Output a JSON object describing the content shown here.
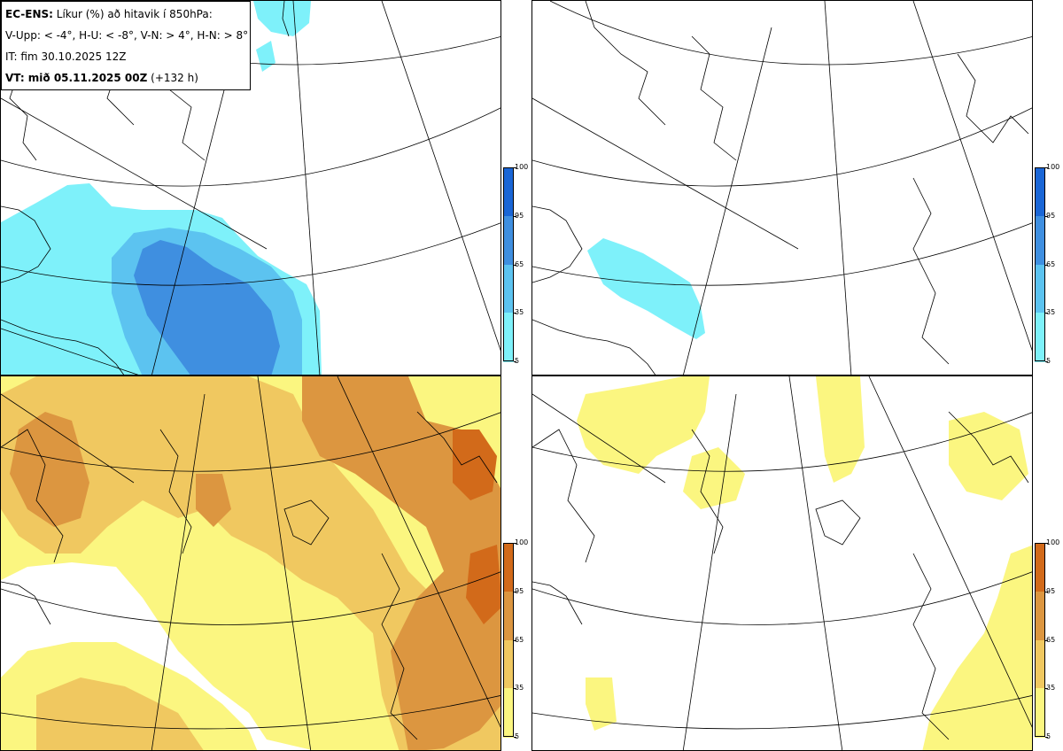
{
  "legend": {
    "model": "EC-ENS:",
    "title_rest": "Líkur (%) að hitavik í 850hPa:",
    "thresholds": "V-Upp: < -4°, H-U: < -8°, V-N: > 4°, H-N: > 8°",
    "init_time": "IT: fim 30.10.2025 12Z",
    "valid_label": "VT: mið 05.11.2025 00Z",
    "lead": "(+132 h)"
  },
  "panels": [
    {
      "id": "cold-4",
      "description_key": "V-Upp",
      "palette": "blue"
    },
    {
      "id": "cold-8",
      "description_key": "H-U",
      "palette": "blue"
    },
    {
      "id": "warm-4",
      "description_key": "V-N",
      "palette": "orange"
    },
    {
      "id": "warm-8",
      "description_key": "H-N",
      "palette": "orange"
    }
  ],
  "colorbar": {
    "ticks": [
      "100",
      "95",
      "65",
      "35",
      "5"
    ],
    "blue": [
      "#1a66d6",
      "#3f8fe0",
      "#5cc3f0",
      "#7ef1fa"
    ],
    "orange": [
      "#d26a1a",
      "#dc9640",
      "#f0c860",
      "#fbf680"
    ]
  },
  "colors": {
    "coast": "#000000",
    "grid": "#000000"
  }
}
